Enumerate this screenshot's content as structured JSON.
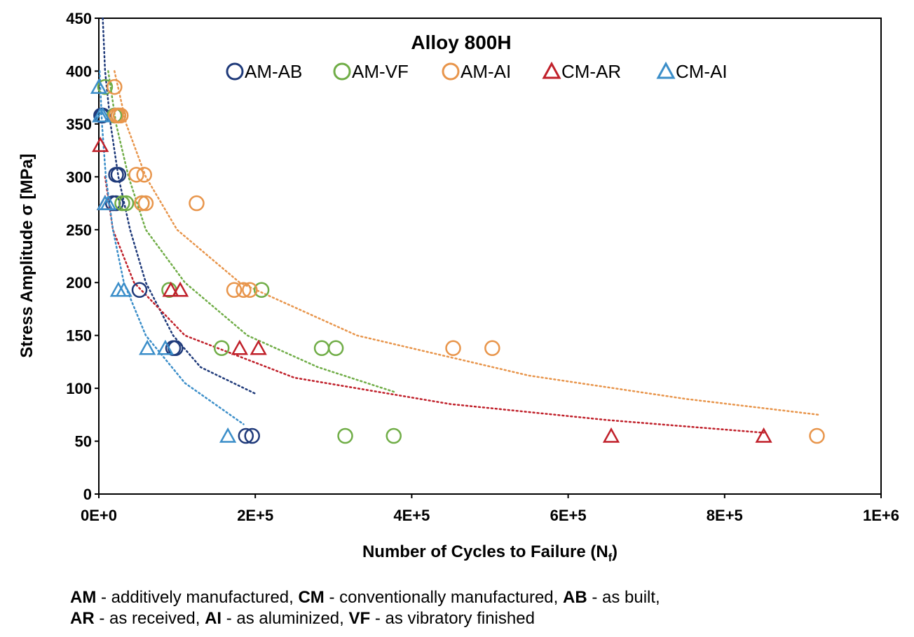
{
  "chart_data": {
    "type": "scatter",
    "title": "Alloy 800H",
    "xlabel": "Number of Cycles to Failure (N",
    "xlabel_sub": "f",
    "xlabel_end": ")",
    "ylabel": "Stress Amplitude σ [MPa]",
    "xlim": [
      0,
      1000000
    ],
    "ylim": [
      0,
      450
    ],
    "x_ticks": [
      0,
      200000,
      400000,
      600000,
      800000,
      1000000
    ],
    "x_tick_labels": [
      "0E+0",
      "2E+5",
      "4E+5",
      "6E+5",
      "8E+5",
      "1E+6"
    ],
    "y_ticks": [
      0,
      50,
      100,
      150,
      200,
      250,
      300,
      350,
      400,
      450
    ],
    "y_tick_labels": [
      "0",
      "50",
      "100",
      "150",
      "200",
      "250",
      "300",
      "350",
      "400",
      "450"
    ],
    "grid": false,
    "legend_position": "top",
    "series": [
      {
        "name": "AM-AB",
        "marker": "circle",
        "color": "#1f3a7a",
        "points": [
          [
            3000,
            358
          ],
          [
            5000,
            358
          ],
          [
            20000,
            358
          ],
          [
            22000,
            302
          ],
          [
            25000,
            302
          ],
          [
            18000,
            275
          ],
          [
            22000,
            275
          ],
          [
            52000,
            193
          ],
          [
            95000,
            138
          ],
          [
            98000,
            138
          ],
          [
            188000,
            55
          ],
          [
            196000,
            55
          ]
        ],
        "trendline": [
          [
            5000,
            450
          ],
          [
            8000,
            400
          ],
          [
            15000,
            350
          ],
          [
            25000,
            300
          ],
          [
            40000,
            250
          ],
          [
            60000,
            200
          ],
          [
            95000,
            150
          ],
          [
            130000,
            120
          ],
          [
            200000,
            95
          ]
        ]
      },
      {
        "name": "AM-VF",
        "marker": "circle",
        "color": "#70ad47",
        "points": [
          [
            8000,
            385
          ],
          [
            20000,
            358
          ],
          [
            25000,
            358
          ],
          [
            30000,
            275
          ],
          [
            35000,
            275
          ],
          [
            55000,
            275
          ],
          [
            90000,
            193
          ],
          [
            208000,
            193
          ],
          [
            157000,
            138
          ],
          [
            285000,
            138
          ],
          [
            303000,
            138
          ],
          [
            315000,
            55
          ],
          [
            377000,
            55
          ]
        ],
        "trendline": [
          [
            12000,
            400
          ],
          [
            22000,
            350
          ],
          [
            38000,
            300
          ],
          [
            60000,
            250
          ],
          [
            110000,
            200
          ],
          [
            190000,
            150
          ],
          [
            280000,
            120
          ],
          [
            380000,
            96
          ]
        ]
      },
      {
        "name": "AM-AI",
        "marker": "circle",
        "color": "#e8954b",
        "points": [
          [
            20000,
            385
          ],
          [
            22000,
            358
          ],
          [
            25000,
            358
          ],
          [
            28000,
            358
          ],
          [
            48000,
            302
          ],
          [
            58000,
            302
          ],
          [
            55000,
            275
          ],
          [
            60000,
            275
          ],
          [
            125000,
            275
          ],
          [
            173000,
            193
          ],
          [
            185000,
            193
          ],
          [
            193000,
            193
          ],
          [
            453000,
            138
          ],
          [
            503000,
            138
          ],
          [
            918000,
            55
          ]
        ],
        "trendline": [
          [
            20000,
            400
          ],
          [
            35000,
            350
          ],
          [
            60000,
            300
          ],
          [
            100000,
            250
          ],
          [
            180000,
            200
          ],
          [
            330000,
            150
          ],
          [
            550000,
            112
          ],
          [
            750000,
            90
          ],
          [
            920000,
            75
          ]
        ]
      },
      {
        "name": "CM-AR",
        "marker": "triangle",
        "color": "#c0202a",
        "points": [
          [
            2000,
            330
          ],
          [
            8000,
            275
          ],
          [
            92000,
            193
          ],
          [
            104000,
            193
          ],
          [
            180000,
            138
          ],
          [
            204000,
            138
          ],
          [
            655000,
            55
          ],
          [
            850000,
            55
          ]
        ],
        "trendline": [
          [
            8000,
            300
          ],
          [
            18000,
            250
          ],
          [
            45000,
            200
          ],
          [
            110000,
            150
          ],
          [
            250000,
            110
          ],
          [
            450000,
            85
          ],
          [
            650000,
            70
          ],
          [
            850000,
            58
          ]
        ]
      },
      {
        "name": "CM-AI",
        "marker": "triangle",
        "color": "#3b8ec9",
        "points": [
          [
            0,
            385
          ],
          [
            2000,
            358
          ],
          [
            5000,
            358
          ],
          [
            8000,
            275
          ],
          [
            12000,
            275
          ],
          [
            25000,
            193
          ],
          [
            32000,
            193
          ],
          [
            62000,
            138
          ],
          [
            85000,
            138
          ],
          [
            165000,
            55
          ]
        ],
        "trendline": [
          [
            1000,
            400
          ],
          [
            4000,
            350
          ],
          [
            9000,
            300
          ],
          [
            18000,
            250
          ],
          [
            32000,
            200
          ],
          [
            60000,
            150
          ],
          [
            110000,
            105
          ],
          [
            185000,
            66
          ]
        ]
      }
    ]
  },
  "footnote": {
    "line1": [
      {
        "bold": "AM",
        "text": " - additively manufactured, "
      },
      {
        "bold": "CM",
        "text": " - conventionally manufactured, "
      },
      {
        "bold": "AB",
        "text": " - as built,"
      }
    ],
    "line2": [
      {
        "bold": "AR",
        "text": " - as received, "
      },
      {
        "bold": "AI",
        "text": " - as aluminized, "
      },
      {
        "bold": "VF",
        "text": " - as vibratory finished"
      }
    ]
  }
}
